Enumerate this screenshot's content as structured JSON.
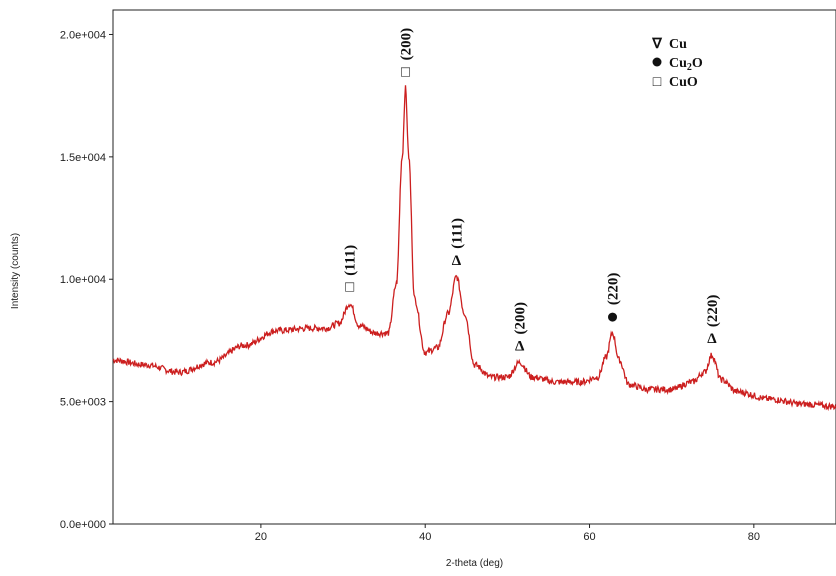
{
  "chart_data": {
    "type": "line",
    "title": "",
    "xlabel": "2-theta (deg)",
    "ylabel": "Intensity (counts)",
    "xlim": [
      2,
      90
    ],
    "ylim": [
      0,
      21000
    ],
    "xticks": [
      20,
      40,
      60,
      80
    ],
    "xtick_labels": [
      "20",
      "40",
      "60",
      "80"
    ],
    "yticks": [
      0,
      5000,
      10000,
      15000,
      20000
    ],
    "ytick_labels": [
      "0.0e+000",
      "5.0e+003",
      "1.0e+004",
      "1.5e+004",
      "2.0e+004"
    ],
    "grid": false,
    "line_color": "#cc1f1f",
    "series": [
      {
        "x": [
          2,
          6,
          10,
          14,
          18,
          22,
          26,
          28,
          29.5,
          30.8,
          32,
          34,
          35.5,
          36.5,
          37.2,
          37.6,
          38.0,
          38.7,
          40,
          41.5,
          42.8,
          43.8,
          44.8,
          46,
          48,
          50,
          51.5,
          53,
          56,
          59,
          61,
          62,
          62.8,
          63.6,
          64.8,
          67,
          70,
          72.5,
          74,
          74.9,
          76,
          78,
          82,
          86,
          90
        ],
        "y": [
          6700,
          6500,
          6200,
          6600,
          7300,
          7900,
          8000,
          8000,
          8200,
          9000,
          8100,
          7800,
          7800,
          9800,
          15000,
          17800,
          15000,
          9200,
          7000,
          7200,
          8600,
          10100,
          8600,
          6500,
          6000,
          6000,
          6600,
          6000,
          5800,
          5800,
          6000,
          6800,
          7800,
          6700,
          5700,
          5500,
          5500,
          5800,
          6200,
          6900,
          5900,
          5400,
          5100,
          4900,
          4800
        ]
      }
    ],
    "annotations": [
      {
        "peak": "(111)",
        "symbol": "□",
        "x": 30.8
      },
      {
        "peak": "(200)",
        "symbol": "□",
        "x": 37.6
      },
      {
        "peak": "(111)",
        "symbol": "Δ",
        "x": 43.8
      },
      {
        "peak": "(200)",
        "symbol": "Δ",
        "x": 51.5
      },
      {
        "peak": "(220)",
        "symbol": "●",
        "x": 62.8
      },
      {
        "peak": "(220)",
        "symbol": "Δ",
        "x": 74.9
      }
    ],
    "legend": {
      "placement": "top-right",
      "entries": [
        {
          "symbol": "∇",
          "label": "Cu"
        },
        {
          "symbol": "●",
          "label": "Cu",
          "sub": "2",
          "suffix": "O"
        },
        {
          "symbol": "□",
          "label": "CuO"
        }
      ]
    }
  }
}
